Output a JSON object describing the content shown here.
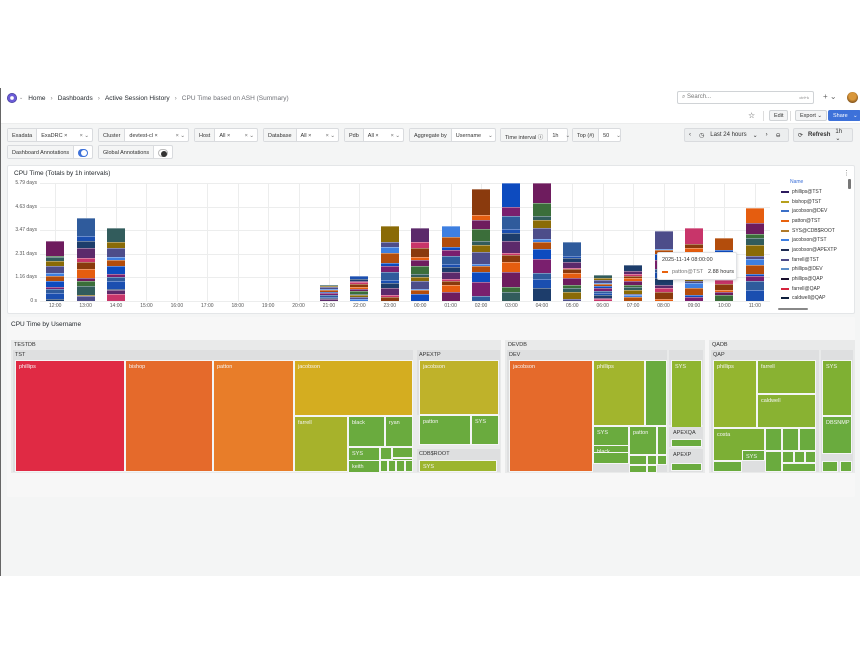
{
  "header": {
    "logo_icon": "grafana-logo-icon",
    "breadcrumbs": [
      "Home",
      "Dashboards",
      "Active Session History",
      "CPU Time based on ASH (Summary)"
    ],
    "search": {
      "placeholder": "Search...",
      "shortcut": "ctrl+k"
    },
    "add_label": "+ ⌄"
  },
  "toolbar": {
    "star_icon": "☆",
    "edit_label": "Edit",
    "export_label": "Export ⌄",
    "share_label": "Share",
    "share_caret": "⌄"
  },
  "filters": [
    {
      "label": "Exadata",
      "value": "ExaDRC ×",
      "ctl": "× ⌄"
    },
    {
      "label": "Cluster",
      "value": "devtest-cl ×",
      "ctl": "× ⌄"
    },
    {
      "label": "Host",
      "value": "All ×",
      "ctl": "× ⌄"
    },
    {
      "label": "Database",
      "value": "All ×",
      "ctl": "× ⌄"
    },
    {
      "label": "Pdb",
      "value": "All ×",
      "ctl": "× ⌄"
    },
    {
      "label": "Aggregate by",
      "value": "Username",
      "ctl": "⌄"
    },
    {
      "label": "Time interval ⓘ",
      "value": "1h",
      "ctl": "⌄"
    },
    {
      "label": "Top (#)",
      "value": "50",
      "ctl": "⌄"
    }
  ],
  "annotations": {
    "dashboard_label": "Dashboard Annotations",
    "dashboard_on": true,
    "global_label": "Global Annotations",
    "global_on": false
  },
  "time_controls": {
    "prev": "‹",
    "range_label": "Last 24 hours",
    "range_caret": "⌄",
    "next": "›",
    "zoom_out": "⊖",
    "refresh_label": "Refresh",
    "refresh_interval": "1h ⌄"
  },
  "chart_panel": {
    "title": "CPU Time (Totals by 1h intervals)",
    "menu_icon": "⋮",
    "legend_header": "Name",
    "tooltip": {
      "timestamp": "2025-11-14 08:00:00",
      "series": "patton@TST",
      "value": "2.88 hours"
    }
  },
  "chart_data": {
    "type": "bar",
    "stacked": true,
    "title": "CPU Time (Totals by 1h intervals)",
    "xlabel": "",
    "ylabel": "",
    "y_ticks": [
      "0 s",
      "1.16 days",
      "2.31 days",
      "3.47 days",
      "4.63 days",
      "5.79 days"
    ],
    "ylim_days": [
      0,
      5.79
    ],
    "grid": true,
    "legend_position": "right",
    "categories": [
      "12:00",
      "13:00",
      "14:00",
      "15:00",
      "16:00",
      "17:00",
      "18:00",
      "19:00",
      "20:00",
      "21:00",
      "22:00",
      "23:00",
      "00:00",
      "01:00",
      "02:00",
      "03:00",
      "04:00",
      "05:00",
      "06:00",
      "07:00",
      "08:00",
      "09:00",
      "10:00",
      "11:00"
    ],
    "totals_days": [
      2.95,
      4.1,
      3.6,
      0,
      0,
      0,
      0,
      0,
      0,
      0.8,
      1.25,
      3.7,
      3.6,
      3.7,
      5.5,
      6.6,
      6.0,
      2.9,
      1.3,
      1.75,
      3.45,
      3.6,
      3.1,
      4.55
    ],
    "legend": [
      {
        "name": "phillips@TST",
        "color": "#2d1b5e"
      },
      {
        "name": "bishop@TST",
        "color": "#b7a01c"
      },
      {
        "name": "jacobson@DEV",
        "color": "#3a6fc7"
      },
      {
        "name": "patton@TST",
        "color": "#e8620e"
      },
      {
        "name": "SYS@CDB$ROOT",
        "color": "#b07a2a"
      },
      {
        "name": "jacobson@TST",
        "color": "#3e7fe0"
      },
      {
        "name": "jacobson@APEXTP",
        "color": "#1e2b52"
      },
      {
        "name": "farrell@TST",
        "color": "#4b4a87"
      },
      {
        "name": "phillips@DEV",
        "color": "#5b8ec9"
      },
      {
        "name": "phillips@QAP",
        "color": "#1a0f2e"
      },
      {
        "name": "farrell@QAP",
        "color": "#d6243e"
      },
      {
        "name": "caldwell@QAP",
        "color": "#0f1f3d"
      }
    ]
  },
  "treemap_panel": {
    "title": "CPU Time by Username",
    "groups": [
      {
        "db": "TESTDB",
        "subgroups": [
          {
            "name": "TST",
            "cells": [
              "phillips",
              "bishop",
              "patton",
              "jacobson",
              "farrell",
              "black",
              "ryan",
              "SYS",
              "keith"
            ]
          },
          {
            "name": "APEXTP",
            "cells": [
              "jacobson",
              "patton",
              "SYS"
            ]
          },
          {
            "name": "CDB$ROOT",
            "cells": [
              "SYS"
            ]
          }
        ]
      },
      {
        "db": "DEVDB",
        "subgroups": [
          {
            "name": "DEV",
            "cells": [
              "jacobson",
              "phillips",
              "SYS",
              "patton",
              "black"
            ]
          },
          {
            "name": "",
            "cells": [
              "SYS"
            ]
          },
          {
            "name": "APEXQA",
            "cells": []
          },
          {
            "name": "APEXP",
            "cells": []
          }
        ]
      },
      {
        "db": "QADB",
        "subgroups": [
          {
            "name": "QAP",
            "cells": [
              "phillips",
              "farrell",
              "caldwell",
              "costa",
              "SYS"
            ]
          },
          {
            "name": "",
            "cells": [
              "SYS",
              "DBSNMP"
            ]
          }
        ]
      }
    ]
  }
}
